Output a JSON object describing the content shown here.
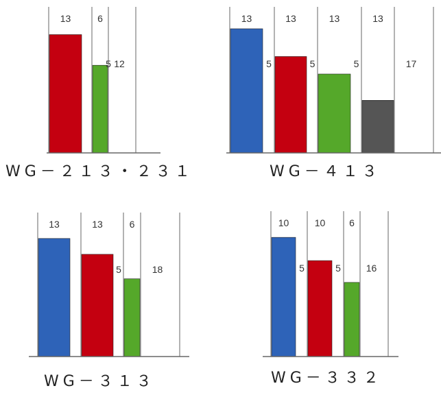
{
  "colors": {
    "blue": "#2e63b8",
    "red": "#c40010",
    "green": "#55a82a",
    "gray": "#555555",
    "outline": "#888888",
    "text": "#333333"
  },
  "diagrams": [
    {
      "id": "wg-213-231",
      "caption": "WG－２１３・２３１",
      "compartments": [
        {
          "width_label": "13",
          "fill": "red",
          "level": 0.81
        },
        {
          "width_label": "6",
          "fill": "green",
          "level": 0.6
        },
        {
          "width_label": "",
          "fill": "none",
          "level": 0,
          "inner_label": "12"
        }
      ],
      "gap_labels": [
        "",
        "5"
      ]
    },
    {
      "id": "wg-413",
      "caption": "WG－４１３",
      "compartments": [
        {
          "width_label": "13",
          "fill": "blue",
          "level": 0.85
        },
        {
          "width_label": "13",
          "fill": "red",
          "level": 0.66
        },
        {
          "width_label": "13",
          "fill": "green",
          "level": 0.54
        },
        {
          "width_label": "13",
          "fill": "gray",
          "level": 0.36
        },
        {
          "width_label": "",
          "fill": "none",
          "level": 0,
          "inner_label": "17"
        }
      ],
      "gap_labels": [
        "5",
        "5",
        "5",
        ""
      ]
    },
    {
      "id": "wg-313",
      "caption": "WG－３１３",
      "compartments": [
        {
          "width_label": "13",
          "fill": "blue",
          "level": 0.82
        },
        {
          "width_label": "13",
          "fill": "red",
          "level": 0.71
        },
        {
          "width_label": "6",
          "fill": "green",
          "level": 0.54
        },
        {
          "width_label": "",
          "fill": "none",
          "level": 0,
          "inner_label": "18"
        }
      ],
      "gap_labels": [
        "",
        "5",
        ""
      ]
    },
    {
      "id": "wg-332",
      "caption": "WG－３３２",
      "compartments": [
        {
          "width_label": "10",
          "fill": "blue",
          "level": 0.82
        },
        {
          "width_label": "10",
          "fill": "red",
          "level": 0.66
        },
        {
          "width_label": "6",
          "fill": "green",
          "level": 0.51
        },
        {
          "width_label": "",
          "fill": "none",
          "level": 0,
          "inner_label": "16"
        }
      ],
      "gap_labels": [
        "5",
        "5",
        ""
      ]
    }
  ]
}
